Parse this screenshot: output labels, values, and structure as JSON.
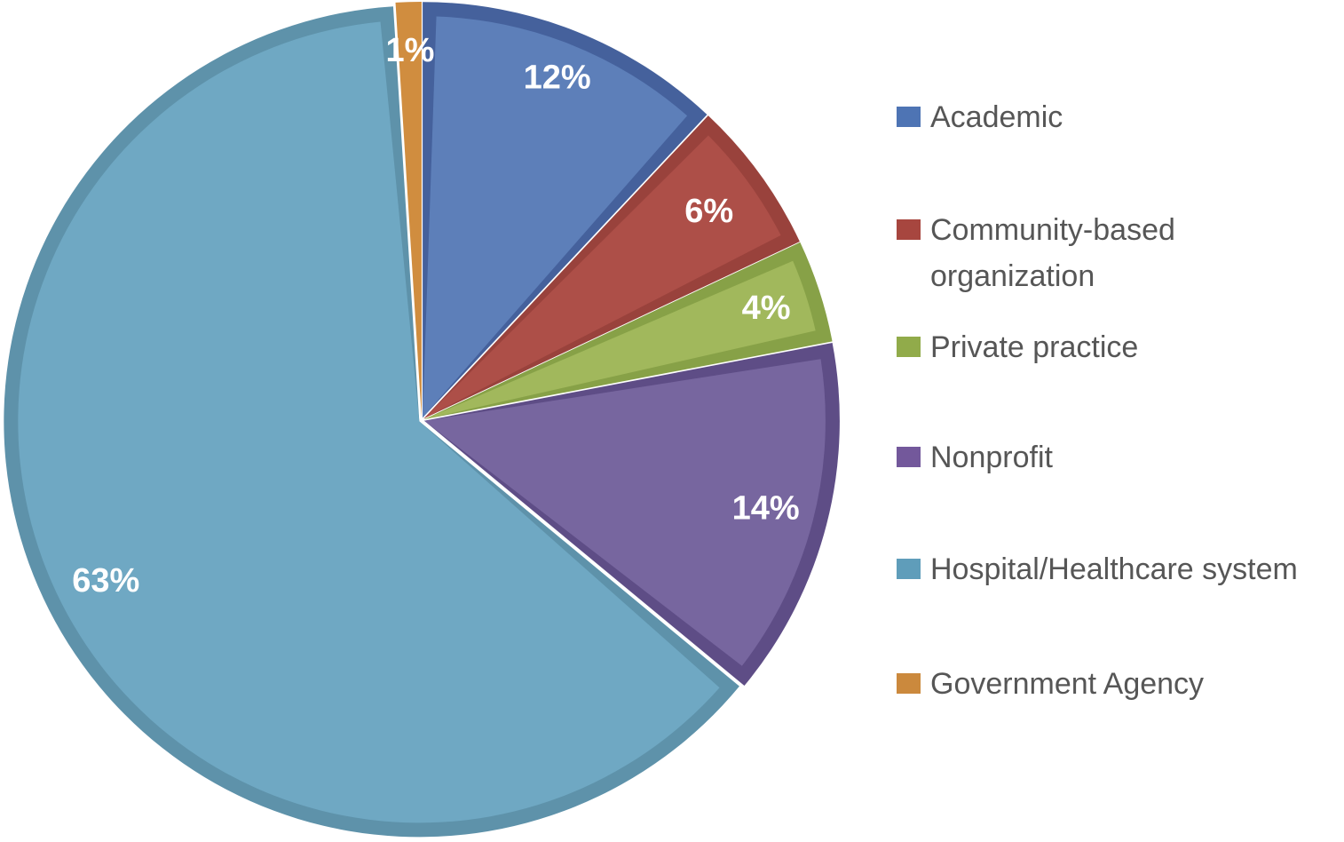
{
  "chart_data": {
    "type": "pie",
    "title": "",
    "total": 100,
    "slices": [
      {
        "label": "Academic",
        "value": 12,
        "display": "12%",
        "color": "#5d7fb9",
        "rim": "#45619c",
        "swatch": "#4e74b4"
      },
      {
        "label": "Community-based organization",
        "value": 6,
        "display": "6%",
        "color": "#ad4f48",
        "rim": "#99423c",
        "swatch": "#a7463f"
      },
      {
        "label": "Private practice",
        "value": 4,
        "display": "4%",
        "color": "#a1b85c",
        "rim": "#87a147",
        "swatch": "#91ab4a"
      },
      {
        "label": "Nonprofit",
        "value": 14,
        "display": "14%",
        "color": "#77669f",
        "rim": "#5e4d86",
        "swatch": "#73589b"
      },
      {
        "label": "Hospital/Healthcare system",
        "value": 63,
        "display": "63%",
        "color": "#6fa8c3",
        "rim": "#5e92aa",
        "swatch": "#5f9dba"
      },
      {
        "label": "Government Agency",
        "value": 1,
        "display": "1%",
        "color": "#d08d3f",
        "rim": "#b5752f",
        "swatch": "#cb893d"
      }
    ],
    "start_angle_deg": 0,
    "direction": "clockwise",
    "legend_position": "right",
    "data_label_color": "#ffffff",
    "legend_text_color": "#565656",
    "background": "#ffffff",
    "label_radius_fraction": [
      0.886,
      0.855,
      0.872,
      0.855,
      0.853,
      0.889
    ]
  }
}
